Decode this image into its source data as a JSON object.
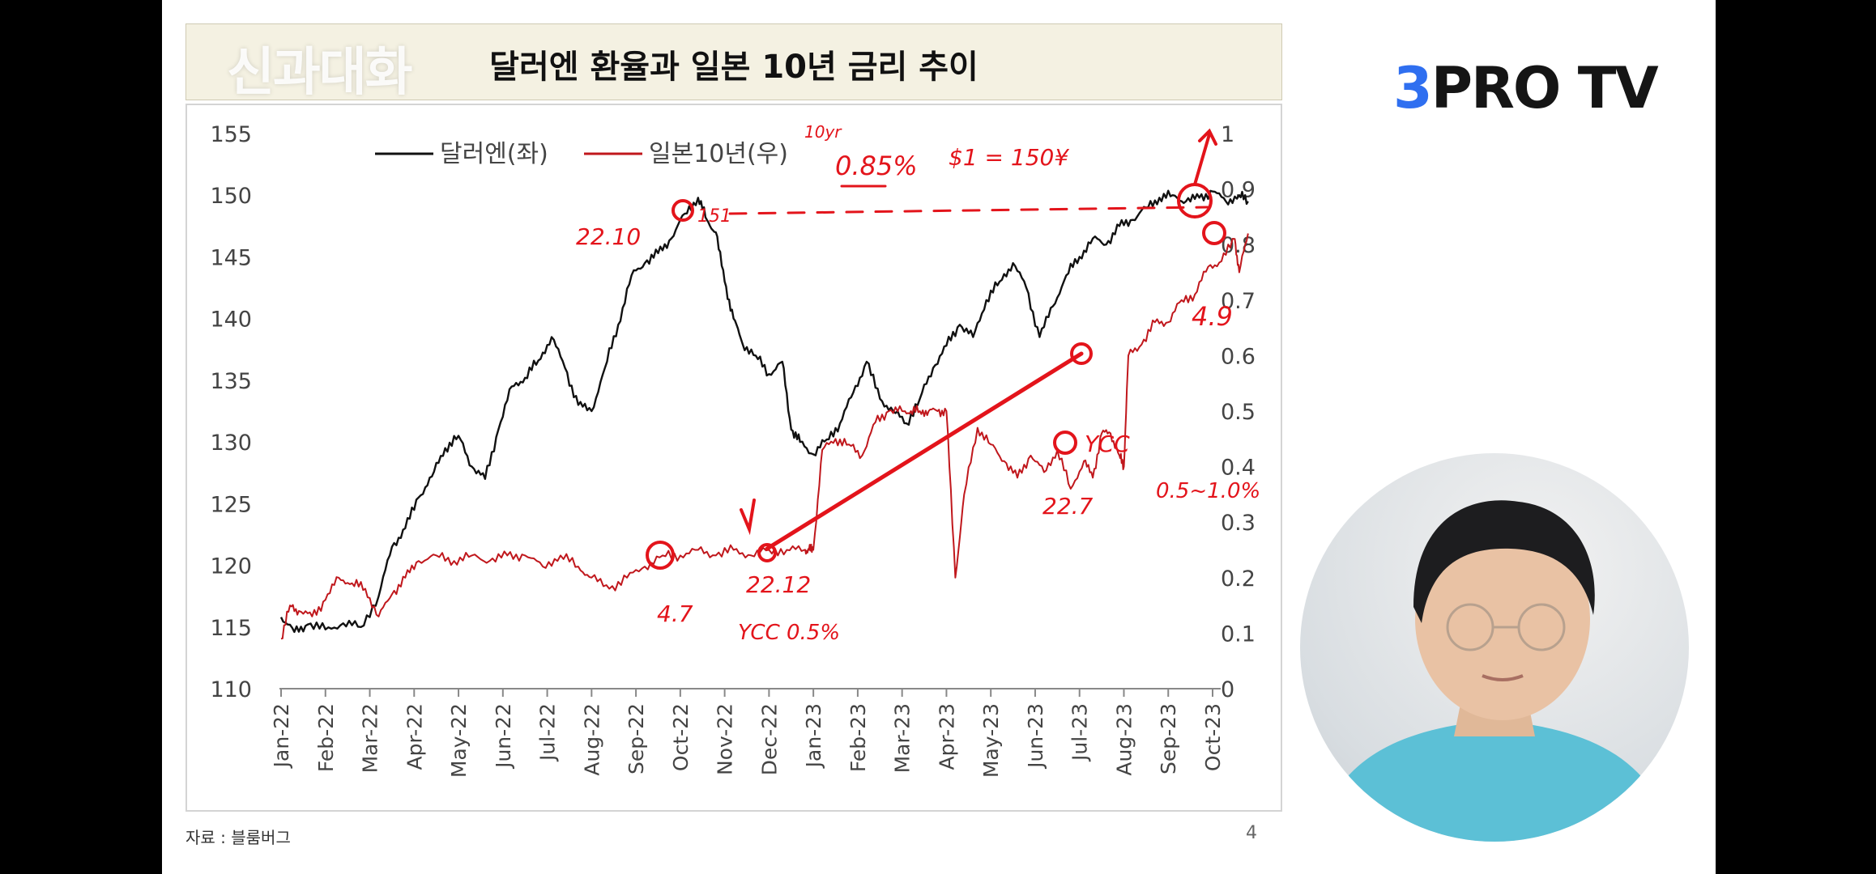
{
  "slide": {
    "title": "달러엔 환율과 일본 10년 금리 추이",
    "watermark": "신과대화",
    "source": "자료 : 블룸버그",
    "page_number": "4"
  },
  "brand": {
    "logo_prefix": "3",
    "logo_rest": "PRO TV",
    "accent_color": "#2f6ff0"
  },
  "colors": {
    "usdjpy": "#111111",
    "jgb": "#c0171c",
    "annotation": "#e3141b"
  },
  "chart_data": {
    "type": "line",
    "title": "",
    "xlabel": "",
    "ylabel": "",
    "ylim_left": [
      110,
      155
    ],
    "ylim_right": [
      0,
      1
    ],
    "yticks_left": [
      "155",
      "150",
      "145",
      "140",
      "135",
      "130",
      "125",
      "120",
      "115",
      "110"
    ],
    "yticks_right": [
      "1",
      "0.9",
      "0.8",
      "0.7",
      "0.6",
      "0.5",
      "0.4",
      "0.3",
      "0.2",
      "0.1",
      "0"
    ],
    "x_labels": [
      "Jan-22",
      "Feb-22",
      "Mar-22",
      "Apr-22",
      "May-22",
      "Jun-22",
      "Jul-22",
      "Aug-22",
      "Sep-22",
      "Oct-22",
      "Nov-22",
      "Dec-22",
      "Jan-23",
      "Feb-23",
      "Mar-23",
      "Apr-23",
      "May-23",
      "Jun-23",
      "Jul-23",
      "Aug-23",
      "Sep-23",
      "Oct-23"
    ],
    "legend": {
      "placement": "top-left"
    },
    "grid": false,
    "series": [
      {
        "name": "달러엔(좌)",
        "axis": "left",
        "x": [
          0,
          0.3,
          0.6,
          1.0,
          1.4,
          1.8,
          2.2,
          2.5,
          2.8,
          3.1,
          3.4,
          3.7,
          4.0,
          4.3,
          4.6,
          4.9,
          5.2,
          5.5,
          5.8,
          6.1,
          6.4,
          6.7,
          7.0,
          7.3,
          7.6,
          7.9,
          8.2,
          8.5,
          8.8,
          9.1,
          9.4,
          9.6,
          9.8,
          10.0,
          10.2,
          10.4,
          10.7,
          11.0,
          11.3,
          11.5,
          11.7,
          12.0,
          12.3,
          12.6,
          12.9,
          13.2,
          13.5,
          13.8,
          14.1,
          14.4,
          14.7,
          15.0,
          15.3,
          15.6,
          15.9,
          16.2,
          16.5,
          16.8,
          17.1,
          17.4,
          17.7,
          18.0,
          18.3,
          18.6,
          18.9,
          19.2,
          19.5,
          19.8,
          20.1,
          20.4,
          20.7,
          21.0,
          21.3,
          21.6,
          21.8
        ],
        "y": [
          115.8,
          114.6,
          115.2,
          114.8,
          115.3,
          115.0,
          117.5,
          121.5,
          123.0,
          125.5,
          127.2,
          129.5,
          130.5,
          128.0,
          127.0,
          131.0,
          134.5,
          135.2,
          136.6,
          138.5,
          136.0,
          133.0,
          132.5,
          136.0,
          139.5,
          143.5,
          144.5,
          145.3,
          146.5,
          148.5,
          149.8,
          148.0,
          147.0,
          143.0,
          140.0,
          138.0,
          137.0,
          135.5,
          136.5,
          131.0,
          130.0,
          129.0,
          130.2,
          131.5,
          134.0,
          136.5,
          133.5,
          132.5,
          131.5,
          133.5,
          136.0,
          137.8,
          139.5,
          138.5,
          141.5,
          143.0,
          144.5,
          142.5,
          138.5,
          141.0,
          143.5,
          145.0,
          146.5,
          146.0,
          147.5,
          148.0,
          149.0,
          149.8,
          150.0,
          149.5,
          149.8,
          150.3,
          149.5,
          150.0,
          149.5
        ]
      },
      {
        "name": "일본10년(우)",
        "axis": "right",
        "x": [
          0,
          0.2,
          0.4,
          0.7,
          1.0,
          1.3,
          1.6,
          1.9,
          2.2,
          2.5,
          2.8,
          3.1,
          3.5,
          3.9,
          4.3,
          4.7,
          5.1,
          5.5,
          5.9,
          6.3,
          6.7,
          7.0,
          7.4,
          7.8,
          8.2,
          8.6,
          9.0,
          9.4,
          9.8,
          10.2,
          10.6,
          11.0,
          11.4,
          11.8,
          11.9,
          12.0,
          12.2,
          12.5,
          12.8,
          13.1,
          13.4,
          13.7,
          14.0,
          14.2,
          14.4,
          14.6,
          14.8,
          15.0,
          15.2,
          15.4,
          15.7,
          16.0,
          16.3,
          16.6,
          16.9,
          17.2,
          17.5,
          17.8,
          18.1,
          18.3,
          18.5,
          18.7,
          18.9,
          19.0,
          19.1,
          19.4,
          19.7,
          20.0,
          20.3,
          20.6,
          20.9,
          21.2,
          21.5,
          21.6,
          21.8
        ],
        "y": [
          0.09,
          0.15,
          0.14,
          0.13,
          0.16,
          0.2,
          0.19,
          0.18,
          0.13,
          0.17,
          0.2,
          0.23,
          0.24,
          0.23,
          0.24,
          0.23,
          0.24,
          0.24,
          0.22,
          0.24,
          0.22,
          0.2,
          0.18,
          0.2,
          0.22,
          0.24,
          0.24,
          0.25,
          0.24,
          0.25,
          0.24,
          0.25,
          0.25,
          0.25,
          0.25,
          0.25,
          0.43,
          0.45,
          0.44,
          0.42,
          0.48,
          0.5,
          0.5,
          0.5,
          0.5,
          0.5,
          0.5,
          0.5,
          0.2,
          0.35,
          0.47,
          0.44,
          0.41,
          0.38,
          0.42,
          0.39,
          0.43,
          0.36,
          0.41,
          0.38,
          0.46,
          0.46,
          0.42,
          0.4,
          0.6,
          0.62,
          0.66,
          0.66,
          0.7,
          0.71,
          0.76,
          0.77,
          0.81,
          0.75,
          0.82
        ]
      }
    ],
    "annotations": [
      "10yr",
      "0.85%",
      "$1 = 150¥",
      "22.10",
      "151",
      "4.7",
      "22.12",
      "YCC 0.5%",
      "22.7",
      "YCC",
      "0.5~1.0%",
      "4.9"
    ]
  }
}
